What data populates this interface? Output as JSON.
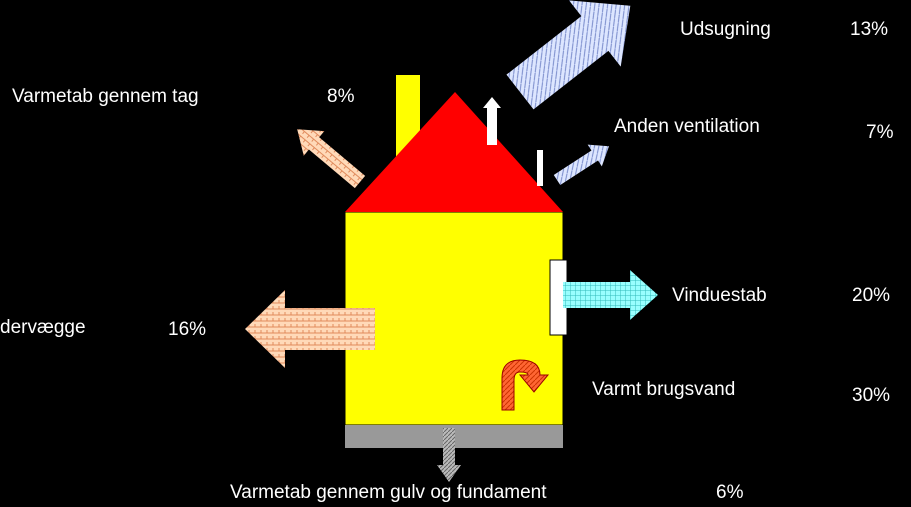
{
  "items": [
    {
      "label": "Udsugning",
      "percent": "13%"
    },
    {
      "label": "Varmetab gennem tag",
      "percent": "8%"
    },
    {
      "label": "Anden ventilation",
      "percent": "7%"
    },
    {
      "label": "dervægge",
      "percent": "16%"
    },
    {
      "label": "Vinduestab",
      "percent": "20%"
    },
    {
      "label": "Varmt brugsvand",
      "percent": "30%"
    },
    {
      "label": "Varmetab gennem gulv og fundament",
      "percent": "6%"
    }
  ]
}
